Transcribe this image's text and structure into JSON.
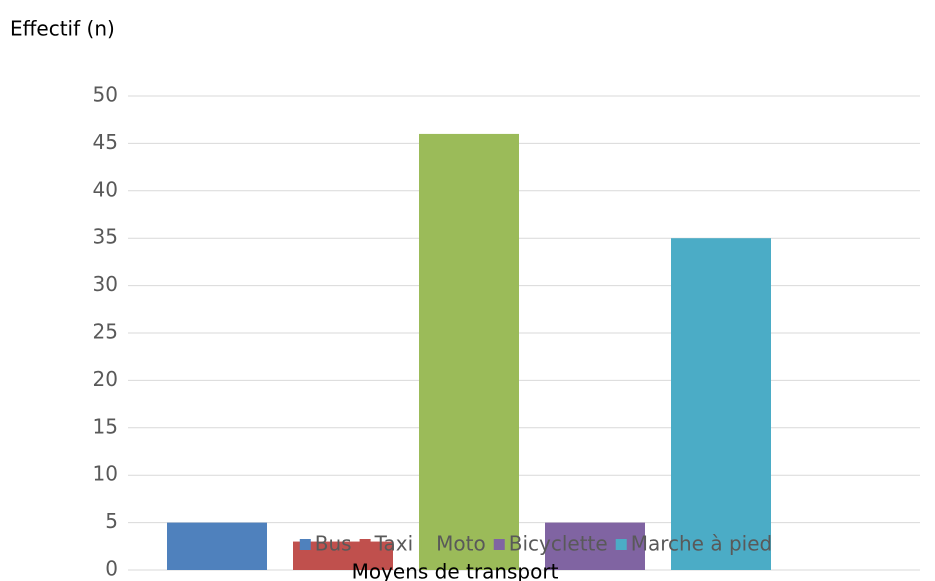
{
  "chart_data": {
    "type": "bar",
    "y_axis_label": "Effectif (n)",
    "x_axis_label": "Moyens de transport",
    "categories": [
      null
    ],
    "series": [
      {
        "name": "Bus",
        "color": "#4f81bd",
        "values": [
          5
        ]
      },
      {
        "name": "Taxi",
        "color": "#c0504d",
        "values": [
          3
        ]
      },
      {
        "name": "Moto",
        "color": "#9bbb59",
        "values": [
          46
        ]
      },
      {
        "name": "Bicyclette",
        "color": "#8064a2",
        "values": [
          5
        ]
      },
      {
        "name": "Marche à pied",
        "color": "#4bacc6",
        "values": [
          35
        ]
      }
    ],
    "ylim": [
      0,
      50
    ],
    "yticks": [
      0,
      5,
      10,
      15,
      20,
      25,
      30,
      35,
      40,
      45,
      50
    ],
    "grid": true,
    "legend": "bottom"
  }
}
